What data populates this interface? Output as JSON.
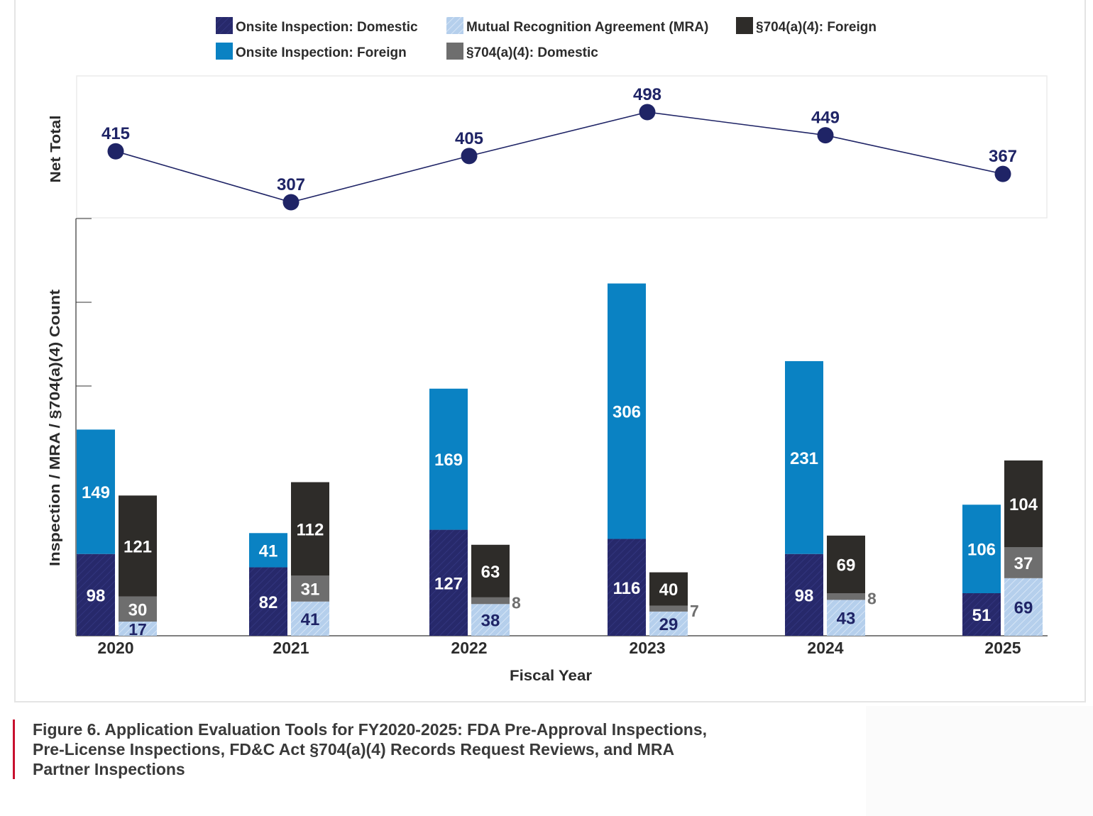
{
  "legend": [
    {
      "name": "Onsite Inspection:  Domestic",
      "color": "#27296b",
      "pattern": "hatch-dark"
    },
    {
      "name": "Mutual Recognition Agreement (MRA)",
      "color": "#aecbea",
      "pattern": "hatch-light"
    },
    {
      "name": "§704(a)(4):  Foreign",
      "color": "#2e2c29",
      "pattern": "solid"
    },
    {
      "name": "Onsite Inspection:  Foreign",
      "color": "#0a82c3",
      "pattern": "solid"
    },
    {
      "name": "§704(a)(4):  Domestic",
      "color": "#6e6e6e",
      "pattern": "solid"
    }
  ],
  "caption": {
    "line1": "Figure 6. Application Evaluation Tools for FY2020-2025: FDA Pre-Approval Inspections,",
    "line2": "Pre-License Inspections, FD&C Act §704(a)(4) Records Request Reviews, and MRA",
    "line3": "Partner Inspections"
  },
  "chart_data": [
    {
      "type": "line",
      "ylabel": "Net Total",
      "categories": [
        "2020",
        "2021",
        "2022",
        "2023",
        "2024",
        "2025"
      ],
      "values": [
        415,
        307,
        405,
        498,
        449,
        367
      ],
      "color": "#1f2466"
    },
    {
      "type": "bar",
      "stacked": true,
      "xlabel": "Fiscal Year",
      "ylabel": "Inspection / MRA / §704(a)(4) Count",
      "categories": [
        "2020",
        "2021",
        "2022",
        "2023",
        "2024",
        "2025"
      ],
      "ylim": [
        0,
        500
      ],
      "series": [
        {
          "name": "Onsite Inspection:  Domestic",
          "stack": "onsite",
          "values": [
            98,
            82,
            127,
            116,
            98,
            51
          ]
        },
        {
          "name": "Onsite Inspection:  Foreign",
          "stack": "onsite",
          "values": [
            149,
            41,
            169,
            306,
            231,
            106
          ]
        },
        {
          "name": "Mutual Recognition Agreement (MRA)",
          "stack": "records",
          "values": [
            17,
            41,
            38,
            29,
            43,
            69
          ]
        },
        {
          "name": "§704(a)(4):  Domestic",
          "stack": "records",
          "values": [
            30,
            31,
            8,
            7,
            8,
            37
          ]
        },
        {
          "name": "§704(a)(4):  Foreign",
          "stack": "records",
          "values": [
            121,
            112,
            63,
            40,
            69,
            104
          ]
        }
      ]
    }
  ]
}
